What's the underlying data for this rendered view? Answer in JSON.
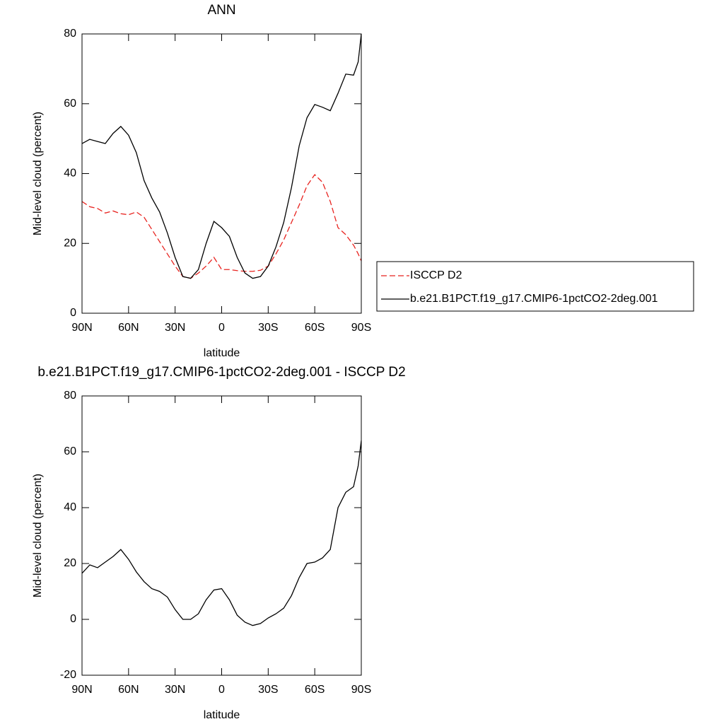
{
  "chart_data": [
    {
      "type": "line",
      "title": "ANN",
      "x_label": "latitude",
      "y_label": "Mid-level cloud (percent)",
      "x": [
        90,
        85,
        80,
        75,
        70,
        65,
        60,
        55,
        50,
        45,
        40,
        35,
        30,
        25,
        20,
        15,
        10,
        5,
        0,
        -5,
        -10,
        -15,
        -20,
        -25,
        -30,
        -35,
        -40,
        -45,
        -50,
        -55,
        -60,
        -65,
        -70,
        -75,
        -80,
        -85,
        -88,
        -90
      ],
      "series": [
        {
          "name": "ISCCP D2",
          "color": "#e8231f",
          "dash": true,
          "values": [
            32,
            30.5,
            30,
            28.7,
            29.3,
            28.5,
            28.2,
            29,
            27.5,
            24,
            20.5,
            17,
            13.5,
            10.5,
            10,
            11.5,
            13.5,
            16,
            12.5,
            12.5,
            12.2,
            12,
            12,
            12.3,
            13.5,
            17,
            21,
            26,
            31,
            36.5,
            39.7,
            37.5,
            32,
            24.5,
            22.5,
            19.5,
            17,
            15
          ]
        },
        {
          "name": "b.e21.B1PCT.f19_g17.CMIP6-1pctCO2-2deg.001",
          "color": "#000000",
          "dash": false,
          "values": [
            48.6,
            49.8,
            49.2,
            48.6,
            51.5,
            53.5,
            51,
            46,
            38,
            33,
            29,
            23,
            16,
            10.5,
            10,
            12.5,
            20,
            26.3,
            24.5,
            22,
            16,
            11.5,
            10,
            10.5,
            13.5,
            19,
            26,
            36,
            48,
            56,
            59.8,
            59,
            58,
            63,
            68.5,
            68.2,
            72,
            80
          ]
        }
      ],
      "xlim": [
        90,
        -90
      ],
      "xticks": [
        {
          "value": 90,
          "label": "90N"
        },
        {
          "value": 60,
          "label": "60N"
        },
        {
          "value": 30,
          "label": "30N"
        },
        0,
        {
          "value": -30,
          "label": "30S"
        },
        {
          "value": -60,
          "label": "60S"
        },
        {
          "value": -90,
          "label": "90S"
        }
      ],
      "ylim": [
        0,
        80
      ],
      "yticks": [
        0,
        20,
        40,
        60,
        80
      ],
      "legend": "right"
    },
    {
      "type": "line",
      "title": "b.e21.B1PCT.f19_g17.CMIP6-1pctCO2-2deg.001 - ISCCP D2",
      "x_label": "latitude",
      "y_label": "Mid-level cloud (percent)",
      "x": [
        90,
        85,
        80,
        75,
        70,
        65,
        60,
        55,
        50,
        45,
        40,
        35,
        30,
        25,
        20,
        15,
        10,
        5,
        0,
        -5,
        -10,
        -15,
        -20,
        -25,
        -30,
        -35,
        -40,
        -45,
        -50,
        -55,
        -60,
        -65,
        -70,
        -75,
        -80,
        -85,
        -88,
        -90
      ],
      "series": [
        {
          "color": "#000000",
          "dash": false,
          "values": [
            16.5,
            19.5,
            18.5,
            20.5,
            22.5,
            25,
            21.5,
            17,
            13.5,
            11,
            10,
            8,
            3.5,
            0,
            0,
            2,
            7,
            10.5,
            11,
            7,
            1.5,
            -1,
            -2.2,
            -1.5,
            0.5,
            2,
            4,
            8.5,
            15,
            20,
            20.5,
            22,
            25,
            40,
            45.5,
            47.5,
            55,
            64
          ]
        }
      ],
      "xlim": [
        90,
        -90
      ],
      "xticks": [
        {
          "value": 90,
          "label": "90N"
        },
        {
          "value": 60,
          "label": "60N"
        },
        {
          "value": 30,
          "label": "30N"
        },
        0,
        {
          "value": -30,
          "label": "30S"
        },
        {
          "value": -60,
          "label": "60S"
        },
        {
          "value": -90,
          "label": "90S"
        }
      ],
      "ylim": [
        -20,
        80
      ],
      "yticks": [
        -20,
        0,
        20,
        40,
        60,
        80
      ]
    }
  ]
}
